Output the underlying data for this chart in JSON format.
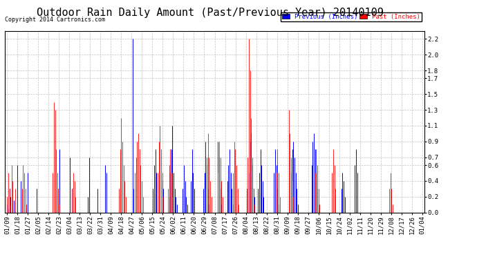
{
  "title": "Outdoor Rain Daily Amount (Past/Previous Year) 20140109",
  "copyright": "Copyright 2014 Cartronics.com",
  "yticks": [
    0.0,
    0.2,
    0.4,
    0.6,
    0.7,
    0.9,
    1.1,
    1.3,
    1.5,
    1.7,
    1.8,
    2.0,
    2.2
  ],
  "ymax": 2.3,
  "ymin": 0.0,
  "legend_previous_label": "Previous (Inches)",
  "legend_past_label": "Past (Inches)",
  "legend_previous_color": "#0000FF",
  "legend_past_color": "#FF0000",
  "bg_color": "#FFFFFF",
  "grid_color": "#BBBBBB",
  "title_fontsize": 11,
  "tick_fontsize": 6.5,
  "x_tick_labels": [
    "01/09",
    "01/18",
    "01/27",
    "02/05",
    "02/14",
    "02/23",
    "03/04",
    "03/13",
    "03/22",
    "03/31",
    "04/09",
    "04/18",
    "04/27",
    "05/06",
    "05/15",
    "05/24",
    "06/02",
    "06/11",
    "06/20",
    "06/29",
    "07/08",
    "07/17",
    "07/26",
    "08/04",
    "08/13",
    "08/22",
    "08/31",
    "09/09",
    "09/18",
    "09/27",
    "10/06",
    "10/15",
    "10/24",
    "11/02",
    "11/11",
    "11/20",
    "11/29",
    "12/08",
    "12/17",
    "12/26",
    "01/04"
  ],
  "num_points": 365,
  "prev_rain": [
    0.1,
    0.05,
    0.3,
    0.2,
    0.0,
    0.0,
    0.15,
    0.0,
    0.0,
    0.6,
    0.0,
    0.0,
    0.4,
    0.0,
    0.0,
    0.0,
    0.0,
    0.0,
    0.5,
    0.0,
    0.0,
    0.0,
    0.0,
    0.0,
    0.0,
    0.0,
    0.3,
    0.0,
    0.0,
    0.0,
    0.0,
    0.0,
    0.0,
    0.0,
    0.0,
    0.0,
    0.0,
    0.0,
    0.0,
    0.0,
    0.0,
    0.0,
    0.0,
    0.0,
    0.0,
    0.0,
    0.8,
    0.0,
    0.0,
    0.0,
    0.0,
    0.0,
    0.0,
    0.0,
    0.0,
    0.7,
    0.0,
    0.3,
    0.0,
    0.0,
    0.0,
    0.0,
    0.0,
    0.0,
    0.0,
    0.0,
    0.0,
    0.0,
    0.0,
    0.0,
    0.0,
    0.2,
    0.7,
    0.0,
    0.0,
    0.0,
    0.0,
    0.0,
    0.0,
    0.3,
    0.0,
    0.0,
    0.0,
    0.0,
    0.0,
    0.0,
    0.6,
    0.5,
    0.0,
    0.0,
    0.0,
    0.0,
    0.0,
    0.0,
    0.0,
    0.0,
    0.0,
    0.0,
    0.0,
    0.0,
    0.0,
    0.0,
    0.0,
    0.0,
    0.0,
    0.0,
    0.0,
    0.0,
    0.0,
    0.0,
    2.2,
    0.0,
    0.0,
    0.0,
    0.0,
    0.0,
    0.0,
    0.0,
    0.0,
    0.0,
    0.0,
    0.0,
    0.0,
    0.0,
    0.0,
    0.0,
    0.0,
    0.0,
    0.3,
    0.6,
    0.8,
    0.5,
    0.0,
    0.0,
    0.0,
    0.0,
    0.4,
    0.3,
    0.0,
    0.0,
    0.0,
    0.0,
    0.2,
    0.5,
    0.8,
    1.1,
    0.5,
    0.3,
    0.2,
    0.1,
    0.0,
    0.0,
    0.0,
    0.0,
    0.3,
    0.6,
    0.4,
    0.2,
    0.1,
    0.0,
    0.0,
    0.4,
    0.8,
    0.5,
    0.3,
    0.0,
    0.0,
    0.0,
    0.0,
    0.0,
    0.0,
    0.0,
    0.3,
    0.5,
    0.9,
    0.6,
    0.3,
    0.1,
    0.0,
    0.0,
    0.0,
    0.0,
    0.0,
    0.0,
    0.0,
    0.9,
    0.7,
    0.3,
    0.1,
    0.0,
    0.0,
    0.0,
    0.0,
    0.4,
    0.6,
    0.8,
    0.5,
    0.3,
    0.1,
    0.0,
    0.0,
    0.0,
    0.0,
    0.0,
    0.0,
    0.0,
    0.0,
    0.0,
    0.0,
    0.0,
    0.0,
    0.0,
    0.5,
    0.9,
    1.0,
    0.6,
    0.3,
    0.2,
    0.0,
    0.0,
    0.3,
    0.5,
    0.8,
    0.6,
    0.4,
    0.2,
    0.0,
    0.0,
    0.0,
    0.0,
    0.0,
    0.0,
    0.0,
    0.0,
    0.5,
    0.8,
    0.6,
    0.3,
    0.1,
    0.0,
    0.0,
    0.0,
    0.0,
    0.0,
    0.0,
    0.0,
    0.0,
    0.0,
    0.0,
    0.5,
    0.8,
    0.9,
    0.7,
    0.5,
    0.3,
    0.1,
    0.0,
    0.0,
    0.0,
    0.0,
    0.0,
    0.0,
    0.0,
    0.0,
    0.0,
    0.0,
    0.0,
    0.6,
    0.9,
    1.0,
    0.8,
    0.5,
    0.3,
    0.1,
    0.0,
    0.0,
    0.0,
    0.0,
    0.0,
    0.0,
    0.0,
    0.0,
    0.0,
    0.0,
    0.0,
    0.0,
    0.0,
    0.0,
    0.0,
    0.0,
    0.0,
    0.0,
    0.0,
    0.3,
    0.5,
    0.4,
    0.2,
    0.0,
    0.0,
    0.0,
    0.0,
    0.0,
    0.0,
    0.0,
    0.0,
    0.6,
    0.8,
    0.5,
    0.0,
    0.0,
    0.0,
    0.0,
    0.0,
    0.0,
    0.0,
    0.0,
    0.0,
    0.0,
    0.0,
    0.0,
    0.0,
    0.0,
    0.0,
    0.0,
    0.0,
    0.0,
    0.0,
    0.0,
    0.0,
    0.0,
    0.0,
    0.0,
    0.0,
    0.0,
    0.0,
    0.0,
    0.0,
    0.0,
    0.0,
    0.0,
    0.0,
    0.0,
    0.0,
    0.0,
    0.0,
    0.0,
    0.0,
    0.0,
    0.0,
    0.0,
    0.0,
    0.0,
    0.0,
    0.0,
    0.0,
    0.0,
    0.0,
    0.0,
    0.0,
    0.0,
    0.0,
    0.0,
    0.0,
    0.0,
    0.0
  ],
  "past_rain": [
    0.2,
    0.5,
    0.3,
    0.1,
    0.6,
    0.4,
    0.0,
    0.3,
    0.0,
    0.0,
    0.0,
    0.0,
    0.0,
    0.3,
    0.6,
    0.5,
    0.3,
    0.1,
    0.0,
    0.0,
    0.0,
    0.0,
    0.0,
    0.0,
    0.0,
    0.0,
    0.0,
    0.0,
    0.0,
    0.0,
    0.0,
    0.0,
    0.0,
    0.0,
    0.0,
    0.0,
    0.0,
    0.0,
    0.0,
    0.0,
    0.5,
    1.4,
    1.3,
    0.8,
    0.5,
    0.3,
    0.1,
    0.0,
    0.0,
    0.0,
    0.0,
    0.0,
    0.0,
    0.0,
    0.0,
    0.0,
    0.0,
    0.3,
    0.5,
    0.4,
    0.2,
    0.0,
    0.0,
    0.0,
    0.0,
    0.0,
    0.0,
    0.0,
    0.0,
    0.0,
    0.0,
    0.0,
    0.0,
    0.0,
    0.0,
    0.0,
    0.0,
    0.0,
    0.0,
    0.0,
    0.0,
    0.0,
    0.0,
    0.0,
    0.0,
    0.0,
    0.0,
    0.0,
    0.0,
    0.0,
    0.0,
    0.0,
    0.0,
    0.0,
    0.0,
    0.0,
    0.0,
    0.0,
    0.3,
    0.8,
    1.2,
    0.9,
    0.6,
    0.4,
    0.2,
    0.0,
    0.0,
    0.0,
    0.0,
    0.0,
    0.0,
    0.3,
    0.5,
    0.7,
    0.9,
    1.0,
    0.8,
    0.6,
    0.4,
    0.2,
    0.0,
    0.0,
    0.0,
    0.0,
    0.0,
    0.0,
    0.0,
    0.0,
    0.0,
    0.0,
    0.0,
    0.0,
    0.5,
    0.9,
    1.1,
    0.8,
    0.5,
    0.2,
    0.0,
    0.0,
    0.0,
    0.3,
    0.6,
    0.8,
    0.5,
    0.2,
    0.0,
    0.0,
    0.0,
    0.0,
    0.0,
    0.0,
    0.0,
    0.0,
    0.0,
    0.0,
    0.0,
    0.0,
    0.0,
    0.0,
    0.0,
    0.0,
    0.0,
    0.0,
    0.0,
    0.0,
    0.0,
    0.0,
    0.0,
    0.0,
    0.0,
    0.0,
    0.0,
    0.0,
    0.3,
    0.7,
    1.0,
    0.7,
    0.4,
    0.2,
    0.0,
    0.0,
    0.0,
    0.0,
    0.0,
    0.5,
    0.9,
    0.7,
    0.4,
    0.2,
    0.0,
    0.0,
    0.0,
    0.0,
    0.0,
    0.0,
    0.0,
    0.0,
    0.5,
    0.9,
    0.8,
    0.6,
    0.3,
    0.1,
    0.0,
    0.0,
    0.0,
    0.0,
    0.0,
    0.0,
    0.3,
    0.7,
    2.2,
    1.8,
    1.2,
    0.7,
    0.3,
    0.1,
    0.0,
    0.0,
    0.0,
    0.0,
    0.0,
    0.0,
    0.0,
    0.0,
    0.0,
    0.0,
    0.0,
    0.0,
    0.0,
    0.0,
    0.0,
    0.0,
    0.0,
    0.0,
    0.5,
    0.8,
    0.5,
    0.2,
    0.0,
    0.0,
    0.0,
    0.0,
    0.0,
    0.0,
    0.0,
    1.3,
    1.0,
    0.7,
    0.4,
    0.2,
    0.0,
    0.0,
    0.0,
    0.0,
    0.0,
    0.0,
    0.0,
    0.0,
    0.0,
    0.0,
    0.0,
    0.0,
    0.0,
    0.0,
    0.0,
    0.0,
    0.0,
    0.0,
    0.5,
    0.8,
    0.6,
    0.3,
    0.1,
    0.0,
    0.0,
    0.0,
    0.0,
    0.0,
    0.0,
    0.0,
    0.0,
    0.0,
    0.0,
    0.5,
    0.8,
    0.6,
    0.3,
    0.0,
    0.0,
    0.0,
    0.0,
    0.0,
    0.0,
    0.0,
    0.0,
    0.0,
    0.0,
    0.0,
    0.0,
    0.0,
    0.0,
    0.0,
    0.0,
    0.0,
    0.0,
    0.0,
    0.0,
    0.0,
    0.0,
    0.0,
    0.0,
    0.0,
    0.0,
    0.0,
    0.0,
    0.0,
    0.0,
    0.0,
    0.0,
    0.0,
    0.0,
    0.0,
    0.0,
    0.0,
    0.0,
    0.0,
    0.0,
    0.0,
    0.0,
    0.0,
    0.0,
    0.0,
    0.0,
    0.3,
    0.5,
    0.3,
    0.1,
    0.0,
    0.0,
    0.0,
    0.0,
    0.0,
    0.0,
    0.0,
    0.0,
    0.0,
    0.0,
    0.0,
    0.0,
    0.0,
    0.0,
    0.0,
    0.0,
    0.0,
    0.0,
    0.0,
    0.0,
    0.0,
    0.0,
    0.0,
    0.0,
    0.0,
    0.0
  ]
}
